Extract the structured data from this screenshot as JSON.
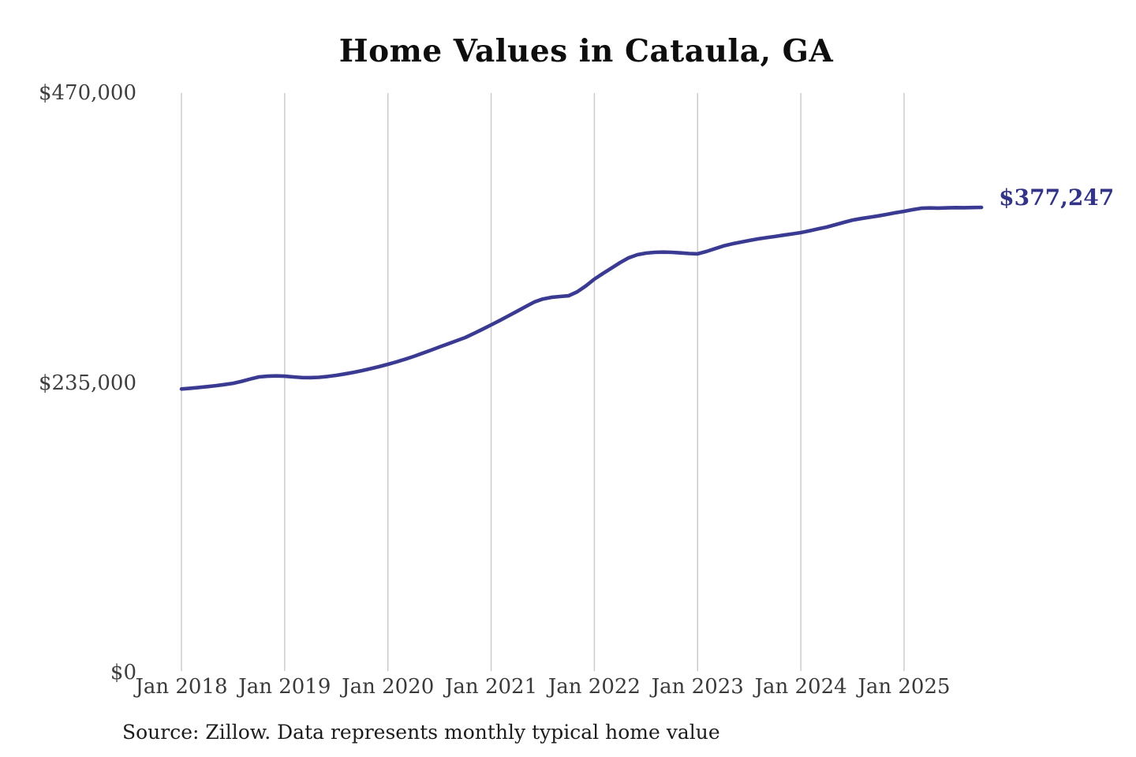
{
  "title": "Home Values in Cataula, GA",
  "value_label": "$377,247",
  "source_note": "Source: Zillow. Data represents monthly typical home value",
  "colors": {
    "line": "#3b3a92",
    "value_label": "#333387",
    "gridline": "#c9c9c9",
    "axis_text": "#3c3c3c",
    "title_text": "#0e0e0e",
    "background": "#ffffff"
  },
  "y_axis": {
    "ticks": [
      {
        "label": "$470,000",
        "value": 470000
      },
      {
        "label": "$235,000",
        "value": 235000
      },
      {
        "label": "$0",
        "value": 0
      }
    ]
  },
  "x_axis": {
    "labels": [
      "Jan 2018",
      "Jan 2019",
      "Jan 2020",
      "Jan 2021",
      "Jan 2022",
      "Jan 2023",
      "Jan 2024",
      "Jan 2025"
    ]
  },
  "chart_data": {
    "type": "line",
    "title": "Home Values in Cataula, GA",
    "xlabel": "",
    "ylabel": "",
    "ylim": [
      0,
      470000
    ],
    "yticks": [
      0,
      235000,
      470000
    ],
    "ytick_labels": [
      "$0",
      "$235,000",
      "$470,000"
    ],
    "xtick_labels": [
      "Jan 2018",
      "Jan 2019",
      "Jan 2020",
      "Jan 2021",
      "Jan 2022",
      "Jan 2023",
      "Jan 2024",
      "Jan 2025"
    ],
    "frequency": "monthly",
    "x_start": "Jan 2018",
    "x_end": "Oct 2025",
    "grid": "vertical-yearly",
    "legend": false,
    "end_label": "$377,247",
    "end_value": 377247,
    "values": [
      230000,
      230600,
      231200,
      231900,
      232700,
      233600,
      234600,
      236200,
      238100,
      239800,
      240400,
      240600,
      240400,
      239800,
      239300,
      239200,
      239500,
      240200,
      241100,
      242200,
      243500,
      244900,
      246500,
      248200,
      250000,
      252000,
      254100,
      256400,
      258900,
      261500,
      264100,
      266600,
      269200,
      271800,
      275100,
      278500,
      282000,
      285600,
      289300,
      293000,
      296800,
      300500,
      303000,
      304300,
      305000,
      305600,
      308800,
      313500,
      319100,
      323700,
      328100,
      332500,
      336400,
      338900,
      340200,
      340800,
      341000,
      340800,
      340400,
      339900,
      339600,
      341500,
      343800,
      346000,
      347700,
      349100,
      350400,
      351700,
      352700,
      353700,
      354800,
      355800,
      356800,
      358300,
      359800,
      361300,
      363200,
      365100,
      367000,
      368200,
      369300,
      370400,
      371600,
      372900,
      374100,
      375400,
      376600,
      376800,
      376700,
      376900,
      377100,
      377000,
      377150,
      377247
    ]
  }
}
